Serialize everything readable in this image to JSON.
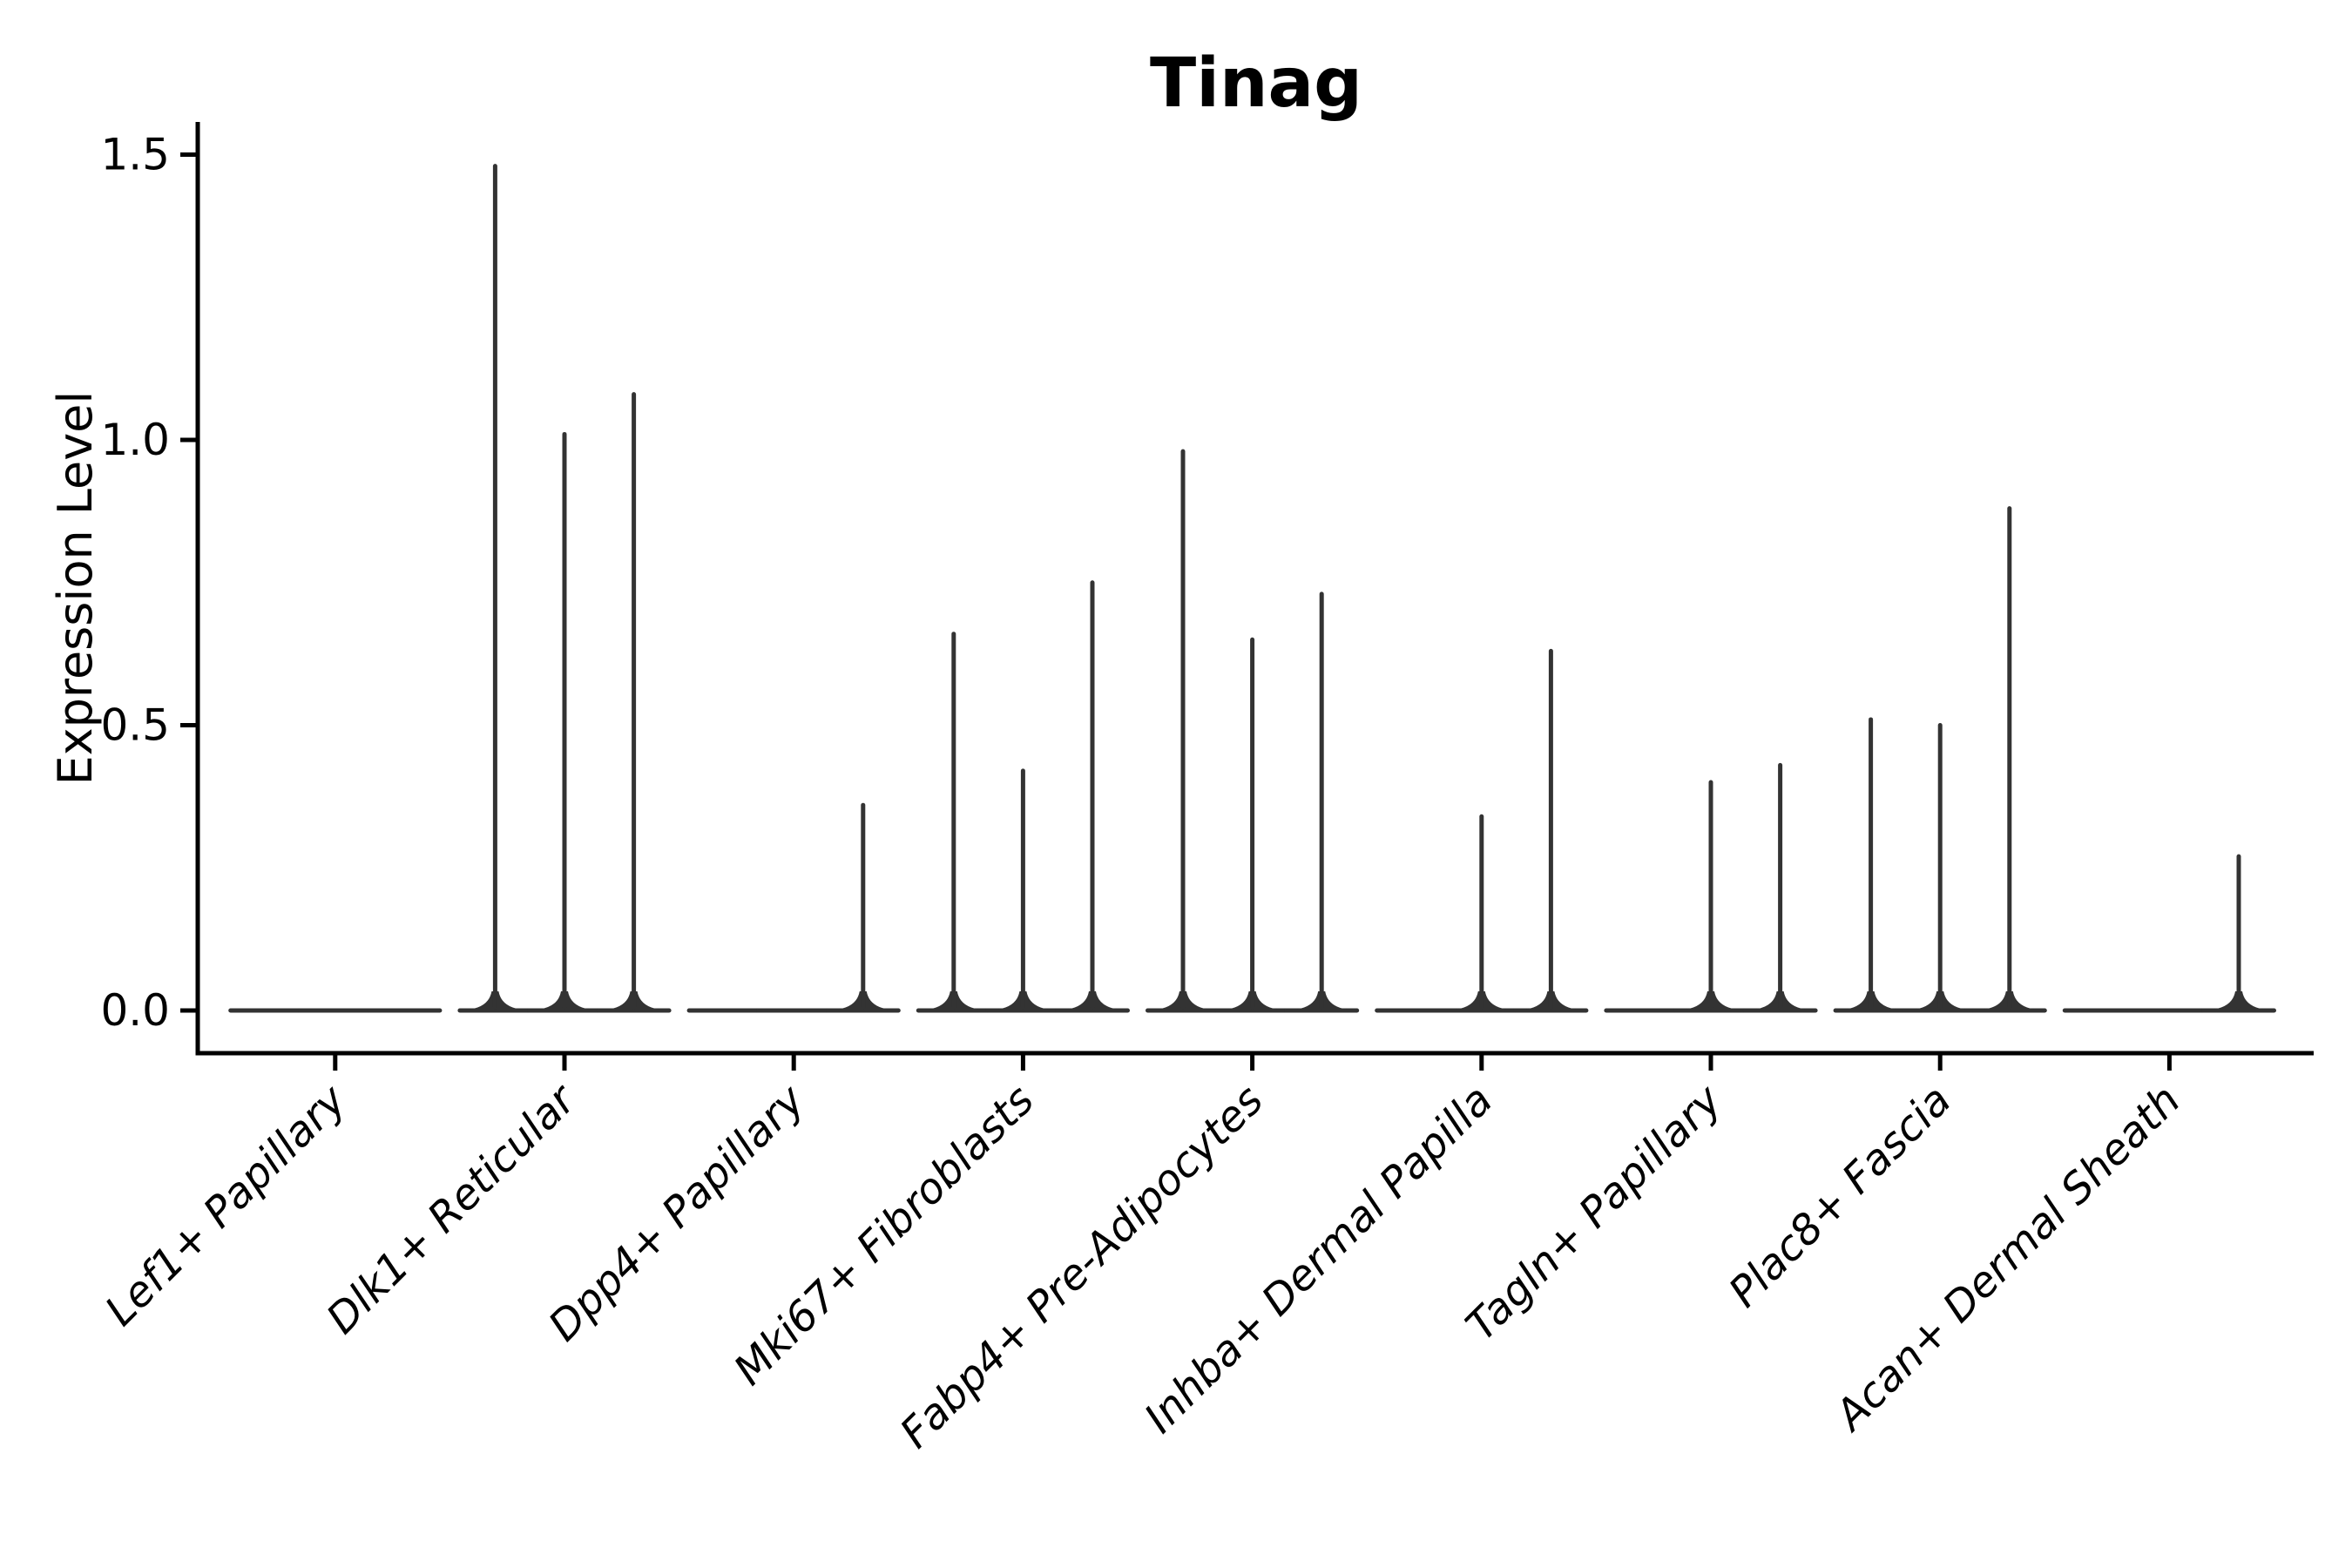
{
  "chart_data": {
    "type": "violin",
    "title": "Tinag",
    "ylabel": "Expression Level",
    "xlabel": "",
    "ytick_labels": [
      "0.0",
      "0.5",
      "1.0",
      "1.5"
    ],
    "ytick_values": [
      0.0,
      0.5,
      1.0,
      1.5
    ],
    "ylim": [
      -0.075,
      1.56
    ],
    "grid": false,
    "legend_position": "none",
    "violins_per_group": 3,
    "categories": [
      "Lef1+ Papillary",
      "Dlk1+ Reticular",
      "Dpp4+ Papillary",
      "Mki67+ Fibroblasts",
      "Fabp4+ Pre-Adipocytes",
      "Inhba+ Dermal Papilla",
      "Tagln+ Papillary",
      "Plac8+ Fascia",
      "Acan+ Dermal Sheath"
    ],
    "series": [
      {
        "category": "Lef1+ Papillary",
        "violin_max_values": [
          0,
          0,
          0
        ]
      },
      {
        "category": "Dlk1+ Reticular",
        "violin_max_values": [
          1.48,
          1.01,
          1.08
        ]
      },
      {
        "category": "Dpp4+ Papillary",
        "violin_max_values": [
          0,
          0,
          0.36
        ]
      },
      {
        "category": "Mki67+ Fibroblasts",
        "violin_max_values": [
          0.66,
          0.42,
          0.75
        ]
      },
      {
        "category": "Fabp4+ Pre-Adipocytes",
        "violin_max_values": [
          0.98,
          0.65,
          0.73
        ]
      },
      {
        "category": "Inhba+ Dermal Papilla",
        "violin_max_values": [
          0,
          0.34,
          0.63
        ]
      },
      {
        "category": "Tagln+ Papillary",
        "violin_max_values": [
          0,
          0.4,
          0.43
        ]
      },
      {
        "category": "Plac8+ Fascia",
        "violin_max_values": [
          0.51,
          0.5,
          0.88
        ]
      },
      {
        "category": "Acan+ Dermal Sheath",
        "violin_max_values": [
          0,
          0,
          0.27
        ]
      }
    ],
    "colors": {
      "violin_line": "#333333",
      "axis": "#000000",
      "text": "#000000",
      "background": "#ffffff"
    },
    "description": "Violin plot of Tinag expression per fibroblast subtype; density is concentrated at 0 so each violin renders as a flat base with a thin spike up to its maximum."
  }
}
